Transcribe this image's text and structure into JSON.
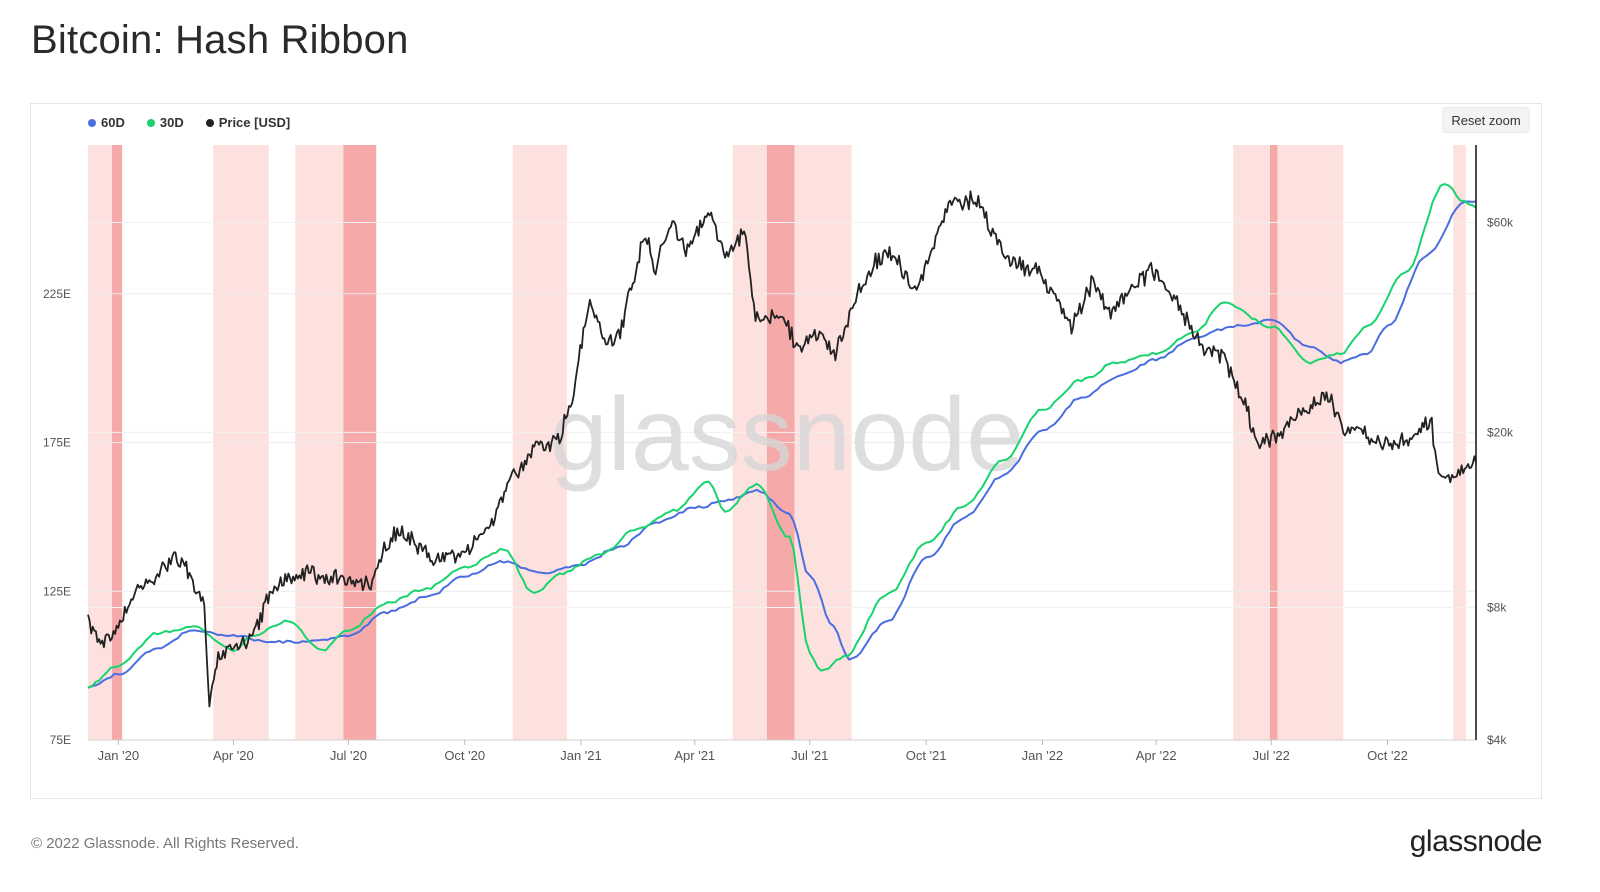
{
  "title": "Bitcoin: Hash Ribbon",
  "legend": [
    {
      "label": "60D",
      "color": "#4a6ee0"
    },
    {
      "label": "30D",
      "color": "#19d36e"
    },
    {
      "label": "Price [USD]",
      "color": "#222222"
    }
  ],
  "reset_zoom": "Reset zoom",
  "watermark": "glassnode",
  "footer": {
    "copyright": "© 2022 Glassnode. All Rights Reserved.",
    "logo": "glassnode"
  },
  "chart_data": {
    "type": "line",
    "title": "Bitcoin: Hash Ribbon",
    "x_range": [
      "2019-12-08",
      "2022-12-10"
    ],
    "x_ticks": [
      {
        "date": "2020-01-01",
        "label": "Jan '20"
      },
      {
        "date": "2020-04-01",
        "label": "Apr '20"
      },
      {
        "date": "2020-07-01",
        "label": "Jul '20"
      },
      {
        "date": "2020-10-01",
        "label": "Oct '20"
      },
      {
        "date": "2021-01-01",
        "label": "Jan '21"
      },
      {
        "date": "2021-04-01",
        "label": "Apr '21"
      },
      {
        "date": "2021-07-01",
        "label": "Jul '21"
      },
      {
        "date": "2021-10-01",
        "label": "Oct '21"
      },
      {
        "date": "2022-01-01",
        "label": "Jan '22"
      },
      {
        "date": "2022-04-01",
        "label": "Apr '22"
      },
      {
        "date": "2022-07-01",
        "label": "Jul '22"
      },
      {
        "date": "2022-10-01",
        "label": "Oct '22"
      }
    ],
    "y_left": {
      "ylim": [
        75,
        275
      ],
      "ticks": [
        75,
        125,
        175,
        225
      ],
      "tick_labels": [
        "75E",
        "125E",
        "175E",
        "225E"
      ]
    },
    "y_right": {
      "scale": "log",
      "ylim": [
        4000,
        90000
      ],
      "ticks": [
        4000,
        8000,
        20000,
        60000
      ],
      "tick_labels": [
        "$4k",
        "$8k",
        "$20k",
        "$60k"
      ]
    },
    "capitulation_bands": [
      {
        "start": "2019-12-08",
        "end": "2019-12-27",
        "shade": "light"
      },
      {
        "start": "2019-12-27",
        "end": "2020-01-04",
        "shade": "dark"
      },
      {
        "start": "2020-03-16",
        "end": "2020-04-29",
        "shade": "light"
      },
      {
        "start": "2020-05-20",
        "end": "2020-06-27",
        "shade": "light"
      },
      {
        "start": "2020-06-27",
        "end": "2020-07-23",
        "shade": "dark"
      },
      {
        "start": "2020-11-08",
        "end": "2020-12-21",
        "shade": "light"
      },
      {
        "start": "2021-05-01",
        "end": "2021-05-28",
        "shade": "light"
      },
      {
        "start": "2021-05-28",
        "end": "2021-06-19",
        "shade": "dark"
      },
      {
        "start": "2021-06-19",
        "end": "2021-08-03",
        "shade": "light"
      },
      {
        "start": "2022-06-01",
        "end": "2022-06-30",
        "shade": "light"
      },
      {
        "start": "2022-06-30",
        "end": "2022-07-06",
        "shade": "dark"
      },
      {
        "start": "2022-07-06",
        "end": "2022-08-27",
        "shade": "light"
      },
      {
        "start": "2022-11-22",
        "end": "2022-12-02",
        "shade": "light"
      }
    ],
    "series": [
      {
        "name": "60D",
        "axis": "left",
        "color": "#4a6ee0",
        "points": [
          [
            "2019-12-08",
            93
          ],
          [
            "2020-01-01",
            97
          ],
          [
            "2020-02-01",
            106
          ],
          [
            "2020-03-01",
            112
          ],
          [
            "2020-04-01",
            110
          ],
          [
            "2020-05-01",
            108
          ],
          [
            "2020-06-01",
            108
          ],
          [
            "2020-07-01",
            110
          ],
          [
            "2020-08-01",
            118
          ],
          [
            "2020-09-01",
            123
          ],
          [
            "2020-10-01",
            130
          ],
          [
            "2020-11-01",
            135
          ],
          [
            "2020-12-01",
            131
          ],
          [
            "2021-01-01",
            134
          ],
          [
            "2021-02-01",
            140
          ],
          [
            "2021-03-01",
            148
          ],
          [
            "2021-04-01",
            153
          ],
          [
            "2021-05-01",
            156
          ],
          [
            "2021-05-20",
            159
          ],
          [
            "2021-06-15",
            151
          ],
          [
            "2021-07-01",
            130
          ],
          [
            "2021-07-20",
            113
          ],
          [
            "2021-08-01",
            102
          ],
          [
            "2021-09-01",
            115
          ],
          [
            "2021-10-01",
            136
          ],
          [
            "2021-11-01",
            150
          ],
          [
            "2021-12-01",
            164
          ],
          [
            "2022-01-01",
            179
          ],
          [
            "2022-02-01",
            190
          ],
          [
            "2022-03-01",
            197
          ],
          [
            "2022-04-01",
            203
          ],
          [
            "2022-05-01",
            210
          ],
          [
            "2022-06-01",
            214
          ],
          [
            "2022-07-01",
            216
          ],
          [
            "2022-08-01",
            207
          ],
          [
            "2022-08-25",
            202
          ],
          [
            "2022-09-15",
            205
          ],
          [
            "2022-10-01",
            214
          ],
          [
            "2022-11-01",
            238
          ],
          [
            "2022-12-01",
            256
          ],
          [
            "2022-12-10",
            256
          ]
        ]
      },
      {
        "name": "30D",
        "axis": "left",
        "color": "#19d36e",
        "points": [
          [
            "2019-12-08",
            93
          ],
          [
            "2020-01-01",
            100
          ],
          [
            "2020-02-01",
            111
          ],
          [
            "2020-03-01",
            113
          ],
          [
            "2020-04-01",
            105
          ],
          [
            "2020-04-15",
            110
          ],
          [
            "2020-05-15",
            115
          ],
          [
            "2020-06-10",
            105
          ],
          [
            "2020-07-01",
            112
          ],
          [
            "2020-08-01",
            121
          ],
          [
            "2020-09-01",
            126
          ],
          [
            "2020-10-01",
            133
          ],
          [
            "2020-11-01",
            139
          ],
          [
            "2020-11-25",
            124
          ],
          [
            "2020-12-15",
            131
          ],
          [
            "2021-01-15",
            137
          ],
          [
            "2021-02-15",
            146
          ],
          [
            "2021-03-15",
            152
          ],
          [
            "2021-04-12",
            162
          ],
          [
            "2021-04-25",
            152
          ],
          [
            "2021-05-20",
            161
          ],
          [
            "2021-06-15",
            143
          ],
          [
            "2021-07-01",
            104
          ],
          [
            "2021-07-10",
            98
          ],
          [
            "2021-07-28",
            103
          ],
          [
            "2021-09-01",
            124
          ],
          [
            "2021-10-01",
            141
          ],
          [
            "2021-11-01",
            154
          ],
          [
            "2021-12-01",
            169
          ],
          [
            "2022-01-01",
            186
          ],
          [
            "2022-02-01",
            196
          ],
          [
            "2022-03-01",
            202
          ],
          [
            "2022-04-01",
            205
          ],
          [
            "2022-05-01",
            212
          ],
          [
            "2022-05-25",
            222
          ],
          [
            "2022-07-01",
            214
          ],
          [
            "2022-08-01",
            202
          ],
          [
            "2022-08-25",
            205
          ],
          [
            "2022-09-15",
            214
          ],
          [
            "2022-10-15",
            232
          ],
          [
            "2022-11-15",
            262
          ],
          [
            "2022-12-01",
            256
          ],
          [
            "2022-12-10",
            254
          ]
        ]
      },
      {
        "name": "Price [USD]",
        "axis": "right",
        "color": "#222222",
        "points": [
          [
            "2019-12-08",
            7500
          ],
          [
            "2019-12-18",
            6700
          ],
          [
            "2020-01-01",
            7200
          ],
          [
            "2020-01-15",
            8700
          ],
          [
            "2020-02-01",
            9400
          ],
          [
            "2020-02-14",
            10300
          ],
          [
            "2020-02-25",
            9700
          ],
          [
            "2020-03-09",
            7900
          ],
          [
            "2020-03-13",
            5000
          ],
          [
            "2020-03-20",
            6200
          ],
          [
            "2020-04-01",
            6500
          ],
          [
            "2020-04-15",
            6800
          ],
          [
            "2020-05-01",
            8700
          ],
          [
            "2020-05-12",
            9300
          ],
          [
            "2020-06-01",
            9600
          ],
          [
            "2020-07-01",
            9100
          ],
          [
            "2020-07-20",
            9200
          ],
          [
            "2020-08-01",
            11400
          ],
          [
            "2020-08-15",
            11900
          ],
          [
            "2020-09-05",
            10300
          ],
          [
            "2020-10-01",
            10600
          ],
          [
            "2020-10-20",
            12000
          ],
          [
            "2020-11-05",
            15300
          ],
          [
            "2020-11-25",
            18500
          ],
          [
            "2020-12-15",
            19400
          ],
          [
            "2020-12-25",
            24000
          ],
          [
            "2021-01-08",
            40000
          ],
          [
            "2021-01-22",
            32000
          ],
          [
            "2021-02-01",
            34000
          ],
          [
            "2021-02-21",
            57000
          ],
          [
            "2021-03-01",
            46000
          ],
          [
            "2021-03-13",
            61000
          ],
          [
            "2021-03-25",
            52000
          ],
          [
            "2021-04-14",
            63500
          ],
          [
            "2021-04-25",
            49000
          ],
          [
            "2021-05-10",
            58000
          ],
          [
            "2021-05-19",
            37000
          ],
          [
            "2021-06-10",
            36000
          ],
          [
            "2021-06-22",
            31000
          ],
          [
            "2021-07-10",
            34000
          ],
          [
            "2021-07-20",
            29800
          ],
          [
            "2021-08-05",
            40000
          ],
          [
            "2021-08-22",
            49000
          ],
          [
            "2021-09-07",
            51000
          ],
          [
            "2021-09-21",
            41000
          ],
          [
            "2021-10-01",
            48000
          ],
          [
            "2021-10-20",
            66000
          ],
          [
            "2021-11-10",
            68000
          ],
          [
            "2021-12-04",
            49000
          ],
          [
            "2021-12-28",
            47000
          ],
          [
            "2022-01-10",
            41000
          ],
          [
            "2022-01-24",
            35000
          ],
          [
            "2022-02-10",
            44000
          ],
          [
            "2022-02-24",
            37000
          ],
          [
            "2022-03-28",
            47000
          ],
          [
            "2022-04-15",
            40000
          ],
          [
            "2022-05-09",
            31000
          ],
          [
            "2022-05-25",
            29500
          ],
          [
            "2022-06-13",
            22000
          ],
          [
            "2022-06-18",
            19000
          ],
          [
            "2022-07-01",
            19300
          ],
          [
            "2022-07-15",
            21000
          ],
          [
            "2022-08-10",
            24000
          ],
          [
            "2022-08-15",
            24400
          ],
          [
            "2022-08-27",
            20000
          ],
          [
            "2022-09-13",
            20200
          ],
          [
            "2022-09-22",
            18800
          ],
          [
            "2022-10-15",
            19200
          ],
          [
            "2022-11-05",
            21200
          ],
          [
            "2022-11-09",
            16500
          ],
          [
            "2022-11-21",
            15800
          ],
          [
            "2022-12-10",
            17100
          ]
        ]
      }
    ]
  }
}
